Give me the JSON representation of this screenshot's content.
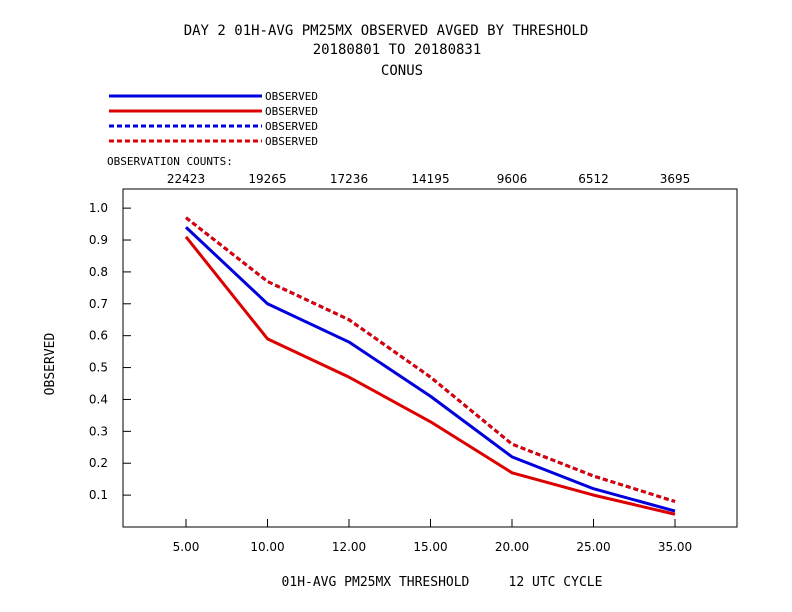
{
  "chart_data": {
    "type": "line",
    "title_lines": [
      "DAY 2   01H-AVG PM25MX OBSERVED   AVGED BY THRESHOLD",
      "20180801 TO 20180831",
      "CONUS"
    ],
    "xlabel": "01H-AVG PM25MX THRESHOLD     12 UTC CYCLE",
    "ylabel": "OBSERVED",
    "categories": [
      "5.00",
      "10.00",
      "12.00",
      "15.00",
      "20.00",
      "25.00",
      "35.00"
    ],
    "counts_label": "OBSERVATION COUNTS:",
    "counts": [
      "22423",
      "19265",
      "17236",
      "14195",
      "9606",
      "6512",
      "3695"
    ],
    "y_ticks": [
      "0.1",
      "0.2",
      "0.3",
      "0.4",
      "0.5",
      "0.6",
      "0.7",
      "0.8",
      "0.9",
      "1.0"
    ],
    "ylim": [
      0.0,
      1.06
    ],
    "grid": false,
    "legend_placement": "top-left",
    "series": [
      {
        "name": "OBSERVED",
        "color": "#0000dd",
        "dash": "solid",
        "values": [
          0.94,
          0.7,
          0.58,
          0.41,
          0.22,
          0.12,
          0.05
        ]
      },
      {
        "name": "OBSERVED",
        "color": "#dd0000",
        "dash": "solid",
        "values": [
          0.91,
          0.59,
          0.47,
          0.33,
          0.17,
          0.1,
          0.04
        ]
      },
      {
        "name": "OBSERVED",
        "color": "#0000dd",
        "dash": "dashed",
        "values": [
          0.97,
          0.77,
          0.65,
          0.47,
          0.26,
          0.16,
          0.08
        ]
      },
      {
        "name": "OBSERVED",
        "color": "#dd0000",
        "dash": "dashed",
        "values": [
          0.97,
          0.77,
          0.65,
          0.47,
          0.26,
          0.16,
          0.08
        ]
      }
    ]
  }
}
